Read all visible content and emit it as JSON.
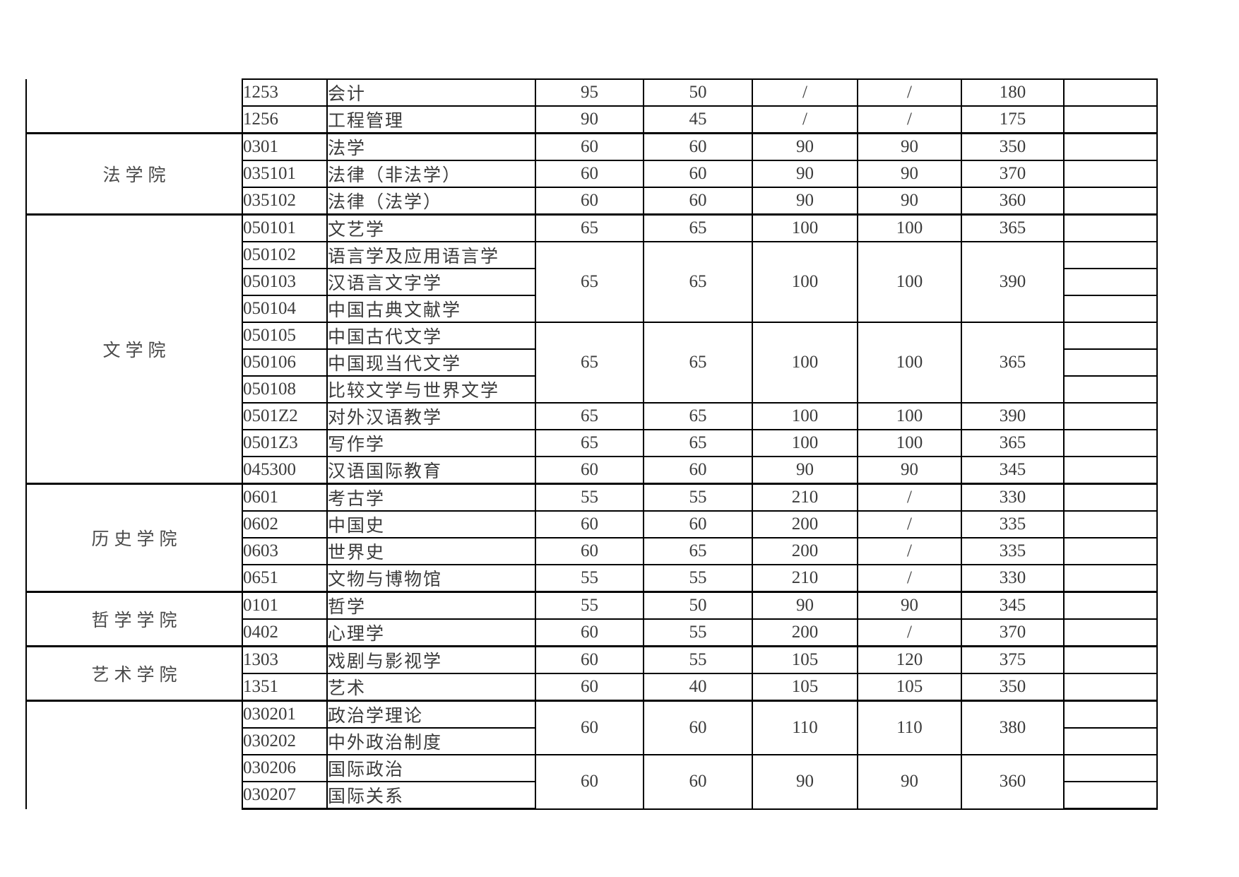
{
  "table": {
    "description_colors": {
      "border": "#000000",
      "text": "#3b3b3b",
      "background": "#ffffff"
    },
    "colleges": [
      {
        "name": "",
        "cut_top": true,
        "groups": [
          {
            "majors": [
              {
                "code": "1253",
                "name": "会计"
              }
            ],
            "scores": [
              "95",
              "50",
              "/",
              "/",
              "180"
            ]
          },
          {
            "majors": [
              {
                "code": "1256",
                "name": "工程管理"
              }
            ],
            "scores": [
              "90",
              "45",
              "/",
              "/",
              "175"
            ]
          }
        ]
      },
      {
        "name": "法学院",
        "groups": [
          {
            "majors": [
              {
                "code": "0301",
                "name": "法学"
              }
            ],
            "scores": [
              "60",
              "60",
              "90",
              "90",
              "350"
            ]
          },
          {
            "majors": [
              {
                "code": "035101",
                "name": "法律（非法学）"
              }
            ],
            "scores": [
              "60",
              "60",
              "90",
              "90",
              "370"
            ]
          },
          {
            "majors": [
              {
                "code": "035102",
                "name": "法律（法学）"
              }
            ],
            "scores": [
              "60",
              "60",
              "90",
              "90",
              "360"
            ]
          }
        ]
      },
      {
        "name": "文学院",
        "groups": [
          {
            "majors": [
              {
                "code": "050101",
                "name": "文艺学"
              }
            ],
            "scores": [
              "65",
              "65",
              "100",
              "100",
              "365"
            ]
          },
          {
            "majors": [
              {
                "code": "050102",
                "name": "语言学及应用语言学"
              },
              {
                "code": "050103",
                "name": "汉语言文字学"
              },
              {
                "code": "050104",
                "name": "中国古典文献学"
              }
            ],
            "scores": [
              "65",
              "65",
              "100",
              "100",
              "390"
            ]
          },
          {
            "majors": [
              {
                "code": "050105",
                "name": "中国古代文学"
              },
              {
                "code": "050106",
                "name": "中国现当代文学"
              },
              {
                "code": "050108",
                "name": "比较文学与世界文学"
              }
            ],
            "scores": [
              "65",
              "65",
              "100",
              "100",
              "365"
            ]
          },
          {
            "majors": [
              {
                "code": "0501Z2",
                "name": "对外汉语教学"
              }
            ],
            "scores": [
              "65",
              "65",
              "100",
              "100",
              "390"
            ]
          },
          {
            "majors": [
              {
                "code": "0501Z3",
                "name": "写作学"
              }
            ],
            "scores": [
              "65",
              "65",
              "100",
              "100",
              "365"
            ]
          },
          {
            "majors": [
              {
                "code": "045300",
                "name": "汉语国际教育"
              }
            ],
            "scores": [
              "60",
              "60",
              "90",
              "90",
              "345"
            ]
          }
        ]
      },
      {
        "name": "历史学院",
        "groups": [
          {
            "majors": [
              {
                "code": "0601",
                "name": "考古学"
              }
            ],
            "scores": [
              "55",
              "55",
              "210",
              "/",
              "330"
            ]
          },
          {
            "majors": [
              {
                "code": "0602",
                "name": "中国史"
              }
            ],
            "scores": [
              "60",
              "60",
              "200",
              "/",
              "335"
            ]
          },
          {
            "majors": [
              {
                "code": "0603",
                "name": "世界史"
              }
            ],
            "scores": [
              "60",
              "65",
              "200",
              "/",
              "335"
            ]
          },
          {
            "majors": [
              {
                "code": "0651",
                "name": "文物与博物馆"
              }
            ],
            "scores": [
              "55",
              "55",
              "210",
              "/",
              "330"
            ]
          }
        ]
      },
      {
        "name": "哲学学院",
        "groups": [
          {
            "majors": [
              {
                "code": "0101",
                "name": "哲学"
              }
            ],
            "scores": [
              "55",
              "50",
              "90",
              "90",
              "345"
            ]
          },
          {
            "majors": [
              {
                "code": "0402",
                "name": "心理学"
              }
            ],
            "scores": [
              "60",
              "55",
              "200",
              "/",
              "370"
            ]
          }
        ]
      },
      {
        "name": "艺术学院",
        "groups": [
          {
            "majors": [
              {
                "code": "1303",
                "name": "戏剧与影视学"
              }
            ],
            "scores": [
              "60",
              "55",
              "105",
              "120",
              "375"
            ]
          },
          {
            "majors": [
              {
                "code": "1351",
                "name": "艺术"
              }
            ],
            "scores": [
              "60",
              "40",
              "105",
              "105",
              "350"
            ]
          }
        ]
      },
      {
        "name": "",
        "cut_bottom": true,
        "groups": [
          {
            "majors": [
              {
                "code": "030201",
                "name": "政治学理论"
              },
              {
                "code": "030202",
                "name": "中外政治制度"
              }
            ],
            "scores": [
              "60",
              "60",
              "110",
              "110",
              "380"
            ]
          },
          {
            "majors": [
              {
                "code": "030206",
                "name": "国际政治"
              },
              {
                "code": "030207",
                "name": "国际关系"
              }
            ],
            "scores": [
              "60",
              "60",
              "90",
              "90",
              "360"
            ]
          }
        ]
      }
    ]
  }
}
